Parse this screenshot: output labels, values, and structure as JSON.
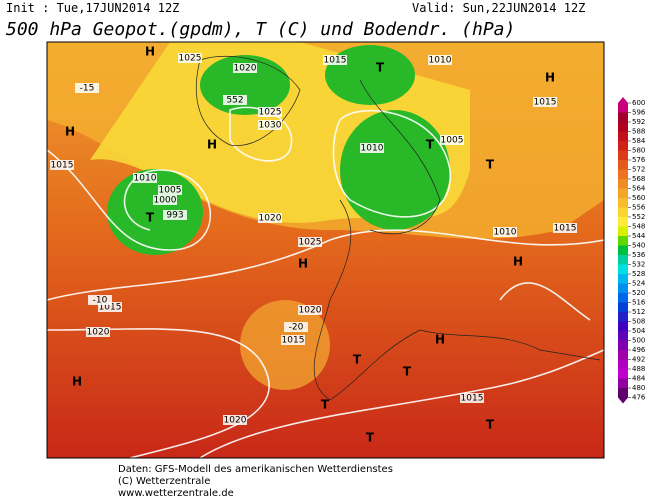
{
  "header": {
    "init": "Init : Tue,17JUN2014 12Z",
    "valid": "Valid: Sun,22JUN2014 12Z",
    "title": "500 hPa Geopot.(gpdm), T (C) und Bodendr. (hPa)"
  },
  "footer": [
    "Daten: GFS-Modell des amerikanischen Wetterdienstes",
    "(C) Wetterzentrale",
    "www.wetterzentrale.de"
  ],
  "map_labels": [
    "H",
    "1025",
    "1020",
    "1015",
    "1010",
    "1015",
    "H",
    "T",
    "552",
    "1025",
    "1030",
    "H",
    "H",
    "1010",
    "1005",
    "T",
    "T",
    "1015",
    "1005",
    "1000",
    "T",
    "993",
    "1010",
    "1020",
    "1025",
    "H",
    "1010",
    "1015",
    "H",
    "1015",
    "1020",
    "1020",
    "1015",
    "T",
    "H",
    "T",
    "1015",
    "1020",
    "T",
    "T",
    "-15",
    "-20",
    "-10",
    "H",
    "T"
  ],
  "colorbar": {
    "levels": [
      600,
      596,
      592,
      588,
      584,
      580,
      576,
      572,
      568,
      564,
      560,
      556,
      552,
      548,
      544,
      540,
      536,
      532,
      528,
      524,
      520,
      516,
      512,
      508,
      504,
      500,
      496,
      492,
      488,
      484,
      480,
      476
    ],
    "colors": [
      "#c8007a",
      "#a0002a",
      "#b00020",
      "#c4101c",
      "#d02018",
      "#dc3a18",
      "#e45a1c",
      "#ec7420",
      "#f08c24",
      "#f4a428",
      "#f8bc2c",
      "#fcd430",
      "#ffec38",
      "#d8f000",
      "#60d800",
      "#00c040",
      "#00d0a0",
      "#00e0e0",
      "#00b8f0",
      "#0090f0",
      "#0068e8",
      "#0040d8",
      "#2020c8",
      "#4000c0",
      "#6000b8",
      "#8000b0",
      "#a000a8",
      "#b000c0",
      "#c000d0",
      "#9000a0",
      "#600070"
    ]
  }
}
